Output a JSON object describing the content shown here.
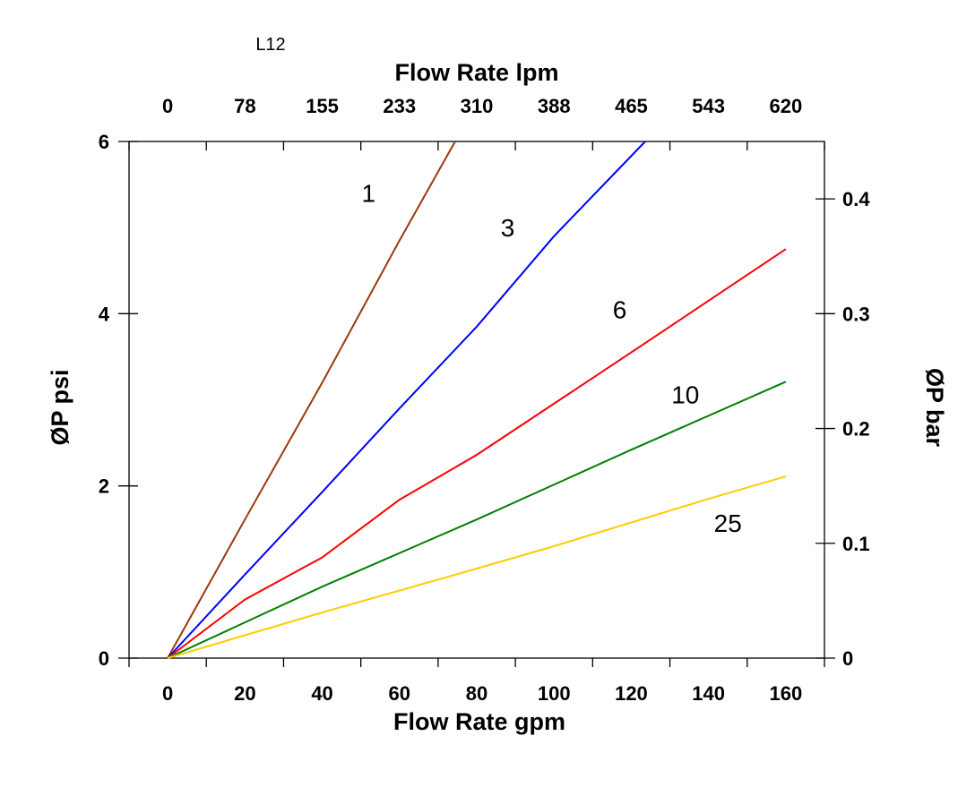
{
  "chart_data": {
    "type": "line",
    "title": "L12",
    "xlabel": "Flow Rate gpm",
    "x2label": "Flow Rate lpm",
    "ylabel": "ØP psi",
    "y2label": "ØP bar",
    "xlim": [
      -10,
      170
    ],
    "ylim": [
      0,
      6
    ],
    "y2lim": [
      0,
      0.45
    ],
    "xticks": [
      0,
      20,
      40,
      60,
      80,
      100,
      120,
      140,
      160
    ],
    "xtick_labels": [
      "0",
      "20",
      "40",
      "60",
      "80",
      "100",
      "120",
      "140",
      "160"
    ],
    "x2tick_labels": [
      "0",
      "78",
      "155",
      "233",
      "310",
      "388",
      "465",
      "543",
      "620"
    ],
    "yticks": [
      0,
      2,
      4,
      6
    ],
    "ytick_labels": [
      "0",
      "2",
      "4",
      "6"
    ],
    "y2ticks": [
      0,
      0.1,
      0.2,
      0.3,
      0.4
    ],
    "y2tick_labels": [
      "0",
      "0.1",
      "0.2",
      "0.3",
      "0.4"
    ],
    "grid": false,
    "series": [
      {
        "name": "1",
        "color": "#9a3a0a",
        "x": [
          0,
          20,
          40,
          60,
          74.4
        ],
        "y": [
          0,
          1.61,
          3.2,
          4.85,
          6.0
        ]
      },
      {
        "name": "3",
        "color": "#0000ff",
        "x": [
          0,
          20,
          40,
          60,
          80,
          100,
          123.6
        ],
        "y": [
          0,
          0.97,
          1.93,
          2.9,
          3.85,
          4.9,
          6.0
        ]
      },
      {
        "name": "6",
        "color": "#ff0000",
        "x": [
          0,
          20,
          40,
          60,
          80,
          120,
          160
        ],
        "y": [
          0,
          0.68,
          1.17,
          1.84,
          2.36,
          3.55,
          4.75
        ]
      },
      {
        "name": "10",
        "color": "#008000",
        "x": [
          0,
          40,
          80,
          120,
          160
        ],
        "y": [
          0,
          0.83,
          1.61,
          2.42,
          3.21
        ]
      },
      {
        "name": "25",
        "color": "#ffcc00",
        "x": [
          0,
          40,
          80,
          100,
          140,
          160
        ],
        "y": [
          0,
          0.53,
          1.04,
          1.3,
          1.85,
          2.11
        ]
      }
    ],
    "annotations": [
      {
        "text": "1",
        "x": 52,
        "y": 5.4
      },
      {
        "text": "3",
        "x": 88,
        "y": 5.0
      },
      {
        "text": "6",
        "x": 117,
        "y": 4.05
      },
      {
        "text": "10",
        "x": 134,
        "y": 3.06
      },
      {
        "text": "25",
        "x": 145,
        "y": 1.57
      }
    ]
  }
}
